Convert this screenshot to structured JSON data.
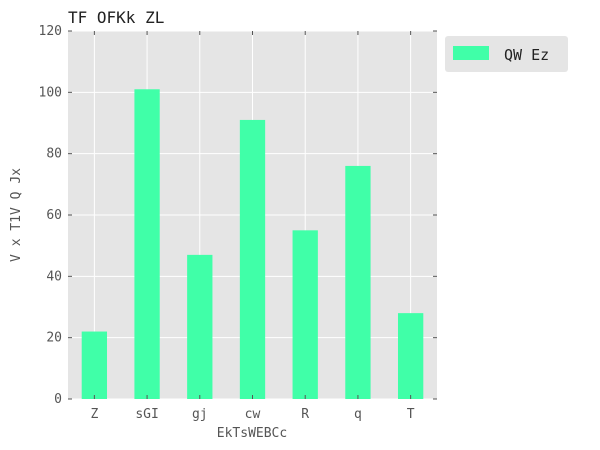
{
  "chart_data": {
    "type": "bar",
    "title": "TF OFKk ZL",
    "xlabel": "EkTsWEBCc",
    "ylabel": "V x T1V Q Jx",
    "categories": [
      "Z",
      "sGI",
      "gj",
      "cw",
      "R",
      "q",
      "T"
    ],
    "series": [
      {
        "name": "QW Ez",
        "values": [
          22,
          101,
          47,
          91,
          55,
          76,
          28
        ]
      }
    ],
    "ylim": [
      0,
      120
    ],
    "yticks": [
      0,
      20,
      40,
      60,
      80,
      100,
      120
    ],
    "grid": true,
    "legend_position": "top-right-outside",
    "colors": {
      "bar": "#40ffa8",
      "plot_background": "#e5e5e5",
      "grid": "#ffffff",
      "legend_background": "#e5e5e5"
    }
  }
}
